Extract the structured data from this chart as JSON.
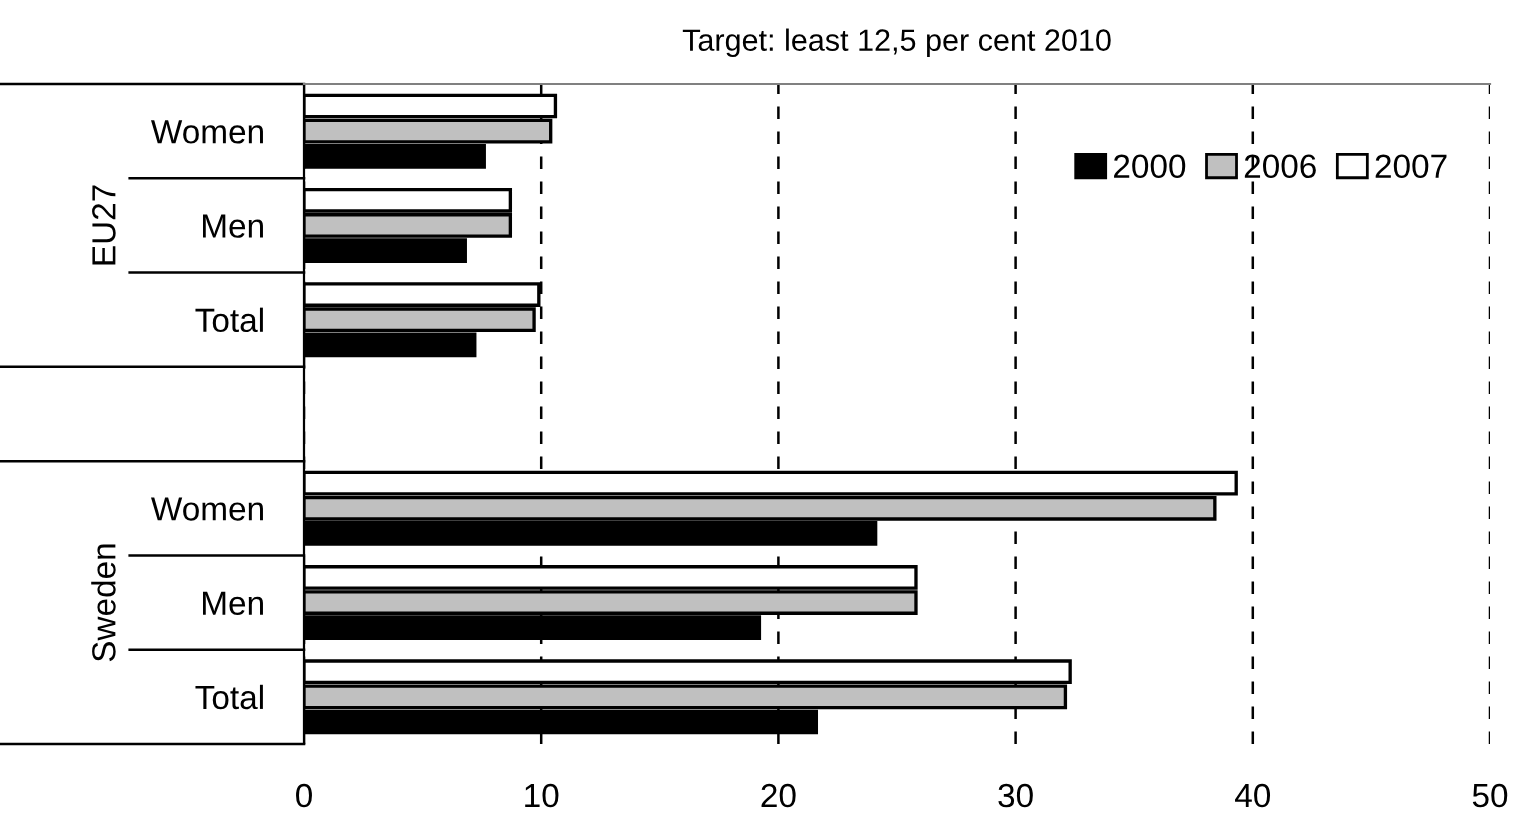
{
  "chart_data": {
    "type": "bar",
    "orientation": "horizontal",
    "title": "Target: least 12,5 per cent 2010",
    "categories": [
      "Women",
      "Men",
      "Total",
      null,
      "Women",
      "Men",
      "Total"
    ],
    "series": [
      {
        "name": "2000",
        "color": "#000000",
        "values": [
          7.6,
          6.8,
          7.2,
          null,
          24.1,
          19.2,
          21.6
        ]
      },
      {
        "name": "2006",
        "color": "#c0c0c0",
        "values": [
          10.4,
          8.7,
          9.7,
          null,
          38.4,
          25.8,
          32.1
        ]
      },
      {
        "name": "2007",
        "color": "#ffffff",
        "values": [
          10.6,
          8.7,
          9.9,
          null,
          39.3,
          25.8,
          32.3
        ]
      }
    ],
    "annotations": [
      "EU27",
      "Sweden"
    ],
    "xlim": [
      0,
      50
    ],
    "xticks": [
      0,
      10,
      20,
      30,
      40,
      50
    ],
    "grid": "x",
    "legend": "top right"
  }
}
